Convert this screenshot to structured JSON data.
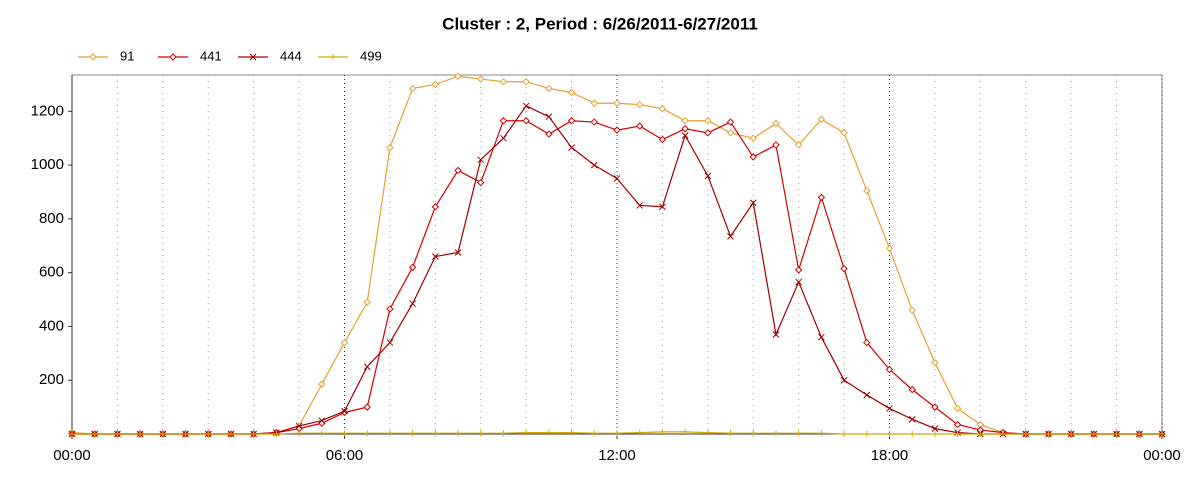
{
  "chart_data": {
    "type": "line",
    "title": "Cluster : 2, Period : 6/26/2011-6/27/2011",
    "x": [
      0,
      0.5,
      1,
      1.5,
      2,
      2.5,
      3,
      3.5,
      4,
      4.5,
      5,
      5.5,
      6,
      6.5,
      7,
      7.5,
      8,
      8.5,
      9,
      9.5,
      10,
      10.5,
      11,
      11.5,
      12,
      12.5,
      13,
      13.5,
      14,
      14.5,
      15,
      15.5,
      16,
      16.5,
      17,
      17.5,
      18,
      18.5,
      19,
      19.5,
      20,
      20.5,
      21,
      21.5,
      22,
      22.5,
      23,
      23.5,
      24
    ],
    "series": [
      {
        "name": "91",
        "color": "#e8a030",
        "marker": "diamond",
        "values": [
          5,
          0,
          0,
          0,
          0,
          0,
          0,
          0,
          0,
          5,
          30,
          185,
          340,
          490,
          1065,
          1285,
          1300,
          1330,
          1320,
          1310,
          1310,
          1285,
          1270,
          1230,
          1230,
          1225,
          1210,
          1165,
          1165,
          1120,
          1100,
          1155,
          1075,
          1170,
          1120,
          905,
          690,
          460,
          265,
          95,
          35,
          5,
          0,
          0,
          0,
          0,
          0,
          0,
          0
        ]
      },
      {
        "name": "441",
        "color": "#d40000",
        "marker": "diamond",
        "values": [
          0,
          0,
          0,
          0,
          0,
          0,
          0,
          0,
          0,
          5,
          20,
          40,
          80,
          100,
          465,
          620,
          845,
          980,
          935,
          1165,
          1165,
          1115,
          1165,
          1160,
          1130,
          1145,
          1095,
          1135,
          1120,
          1160,
          1030,
          1075,
          610,
          880,
          615,
          340,
          240,
          165,
          100,
          35,
          15,
          5,
          0,
          0,
          0,
          0,
          0,
          0,
          0
        ]
      },
      {
        "name": "444",
        "color": "#a00000",
        "marker": "x",
        "values": [
          0,
          0,
          0,
          0,
          0,
          0,
          0,
          0,
          0,
          5,
          30,
          50,
          85,
          250,
          340,
          485,
          660,
          675,
          1020,
          1100,
          1220,
          1180,
          1065,
          1000,
          950,
          850,
          845,
          1110,
          960,
          735,
          860,
          370,
          565,
          360,
          200,
          145,
          95,
          55,
          20,
          5,
          0,
          0,
          0,
          0,
          0,
          0,
          0,
          0,
          0
        ]
      },
      {
        "name": "499",
        "color": "#d4aa00",
        "marker": "plus",
        "values": [
          0,
          0,
          0,
          0,
          0,
          0,
          0,
          0,
          0,
          0,
          3,
          3,
          3,
          3,
          3,
          3,
          3,
          3,
          3,
          3,
          5,
          5,
          5,
          3,
          3,
          5,
          8,
          8,
          5,
          3,
          3,
          3,
          3,
          3,
          0,
          0,
          0,
          0,
          0,
          0,
          0,
          0,
          0,
          0,
          0,
          0,
          0,
          0,
          0
        ]
      }
    ],
    "xlim": [
      0,
      24
    ],
    "xticks": [
      {
        "value": 0,
        "label": "00:00"
      },
      {
        "value": 6,
        "label": "06:00"
      },
      {
        "value": 12,
        "label": "12:00"
      },
      {
        "value": 18,
        "label": "18:00"
      },
      {
        "value": 24,
        "label": "00:00"
      }
    ],
    "xminorticks": [
      1,
      2,
      3,
      4,
      5,
      7,
      8,
      9,
      10,
      11,
      13,
      14,
      15,
      16,
      17,
      19,
      20,
      21,
      22,
      23
    ],
    "ylim": [
      0,
      1335
    ],
    "yticks": [
      200,
      400,
      600,
      800,
      1000,
      1200
    ],
    "grid": true
  }
}
